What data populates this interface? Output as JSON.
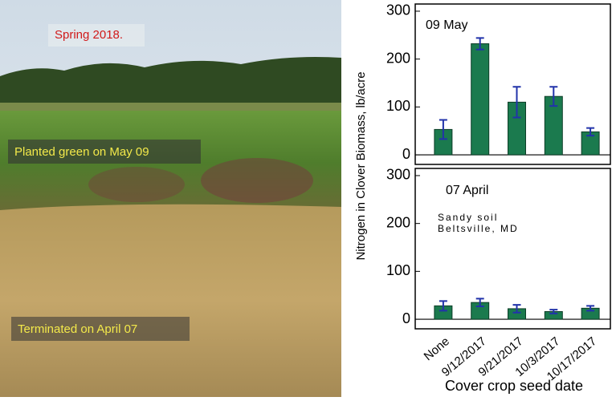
{
  "photo_labels": [
    "Spring 2018.",
    "Planted green on May 09",
    "Terminated on April 07"
  ],
  "chart_data": [
    {
      "type": "bar",
      "y_label": "Nitrogen in Clover Biomass, lb/acre",
      "annotations": [
        "09 May"
      ],
      "values": [
        53,
        232,
        110,
        122,
        48
      ],
      "errors": [
        20,
        12,
        32,
        20,
        8
      ],
      "color": "#1b7a4e",
      "error_color": "#2233aa",
      "ylim": [
        -20,
        315
      ],
      "yticks": [
        0,
        100,
        200,
        300
      ]
    },
    {
      "type": "bar",
      "x_label": "Cover crop seed date",
      "annotations": [
        "07 April",
        "Sandy soil",
        "Beltsville, MD"
      ],
      "categories": [
        "None",
        "9/12/2017",
        "9/21/2017",
        "10/3/2017",
        "10/17/2017"
      ],
      "values": [
        28,
        35,
        22,
        16,
        23
      ],
      "errors": [
        10,
        8,
        8,
        4,
        5
      ],
      "color": "#1b7a4e",
      "error_color": "#2233aa",
      "ylim": [
        -20,
        315
      ],
      "yticks": [
        0,
        100,
        200,
        300
      ]
    }
  ]
}
